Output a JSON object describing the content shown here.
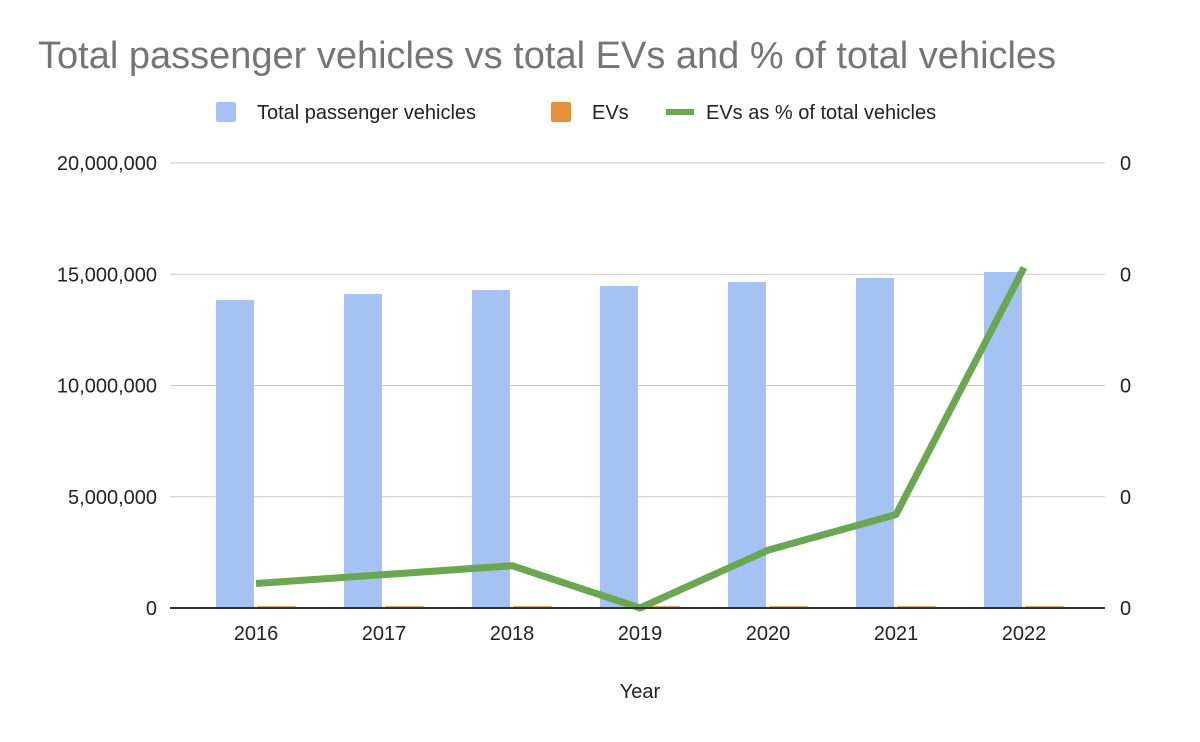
{
  "chart_data": {
    "type": "bar",
    "title": "Total passenger vehicles vs total EVs and % of total vehicles",
    "xlabel": "Year",
    "ylabel": "",
    "categories": [
      "2016",
      "2017",
      "2018",
      "2019",
      "2020",
      "2021",
      "2022"
    ],
    "series": [
      {
        "name": "Total passenger vehicles",
        "type": "bar",
        "axis": "left",
        "color": "#a4c2f4",
        "values": [
          13840000,
          14110000,
          14290000,
          14470000,
          14650000,
          14830000,
          15100000
        ]
      },
      {
        "name": "EVs",
        "type": "bar",
        "axis": "left",
        "color": "#e69138",
        "values": [
          80000,
          80000,
          80000,
          80000,
          80000,
          80000,
          80000
        ]
      },
      {
        "name": "EVs as % of total vehicles",
        "type": "line",
        "axis": "right",
        "color": "#6aa84f",
        "values": [
          0.0011,
          0.0015,
          0.0019,
          0.0,
          0.0026,
          0.0042,
          0.0153
        ]
      }
    ],
    "ylim": [
      0,
      20000000
    ],
    "y2lim": [
      0,
      0.02
    ],
    "yticks": [
      0,
      5000000,
      10000000,
      15000000,
      20000000
    ],
    "ytick_labels": [
      "0",
      "5,000,000",
      "10,000,000",
      "15,000,000",
      "20,000,000"
    ],
    "y2tick_labels": [
      "0",
      "0",
      "0",
      "0",
      "0"
    ],
    "grid": true,
    "legend": "top"
  }
}
